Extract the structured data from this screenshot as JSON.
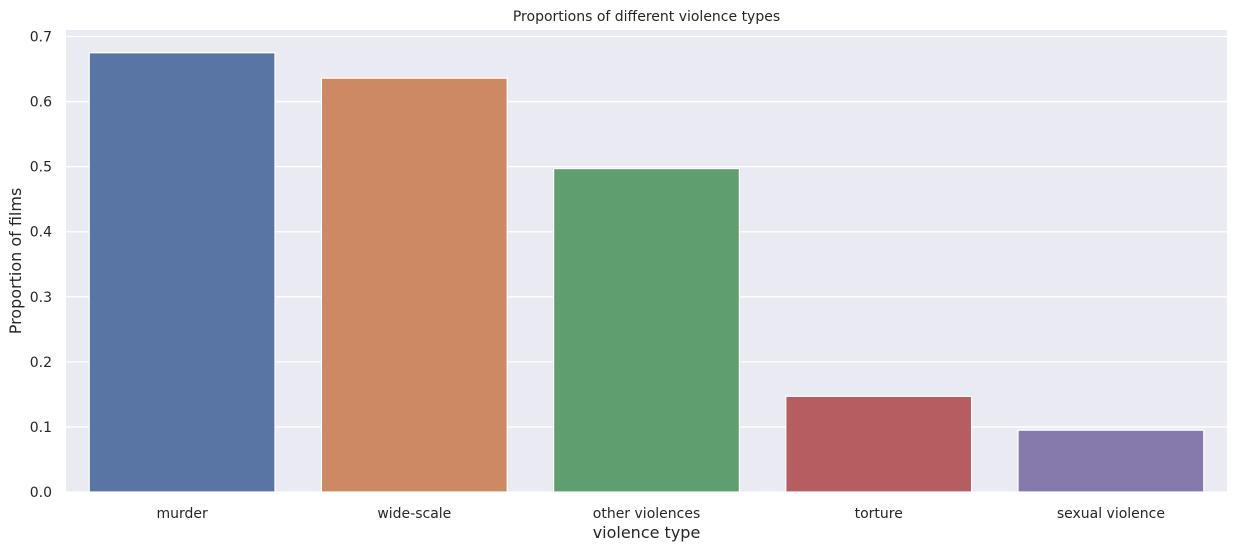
{
  "chart_data": {
    "type": "bar",
    "title": "Proportions of different violence types",
    "xlabel": "violence type",
    "ylabel": "Proportion of films",
    "categories": [
      "murder",
      "wide-scale",
      "other violences",
      "torture",
      "sexual violence"
    ],
    "values": [
      0.675,
      0.636,
      0.497,
      0.147,
      0.095
    ],
    "colors": [
      "#5875a4",
      "#cc8963",
      "#5f9e6e",
      "#b55d60",
      "#857aab"
    ],
    "ylim": [
      0,
      0.71
    ],
    "yticks": [
      0.0,
      0.1,
      0.2,
      0.3,
      0.4,
      0.5,
      0.6,
      0.7
    ],
    "ytick_labels": [
      "0.0",
      "0.1",
      "0.2",
      "0.3",
      "0.4",
      "0.5",
      "0.6",
      "0.7"
    ],
    "grid": true,
    "background": "#eaeaf2"
  }
}
